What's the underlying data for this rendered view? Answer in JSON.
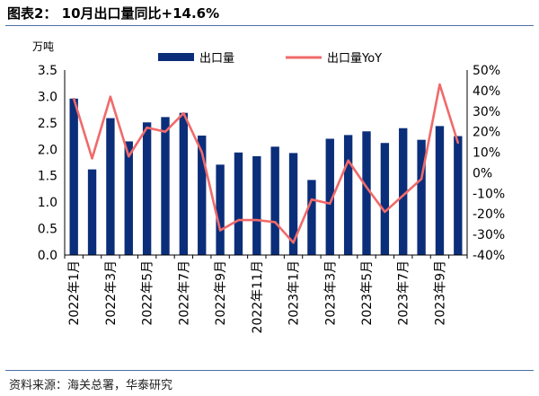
{
  "figure_title": "图表2：  10月出口量同比+14.6%",
  "source": "资料来源：海关总署，华泰研究",
  "colors": {
    "bar": "#0b2e7a",
    "line": "#f06a6a",
    "rule": "#4a6fa5"
  },
  "chart_data": {
    "type": "bar",
    "title": "",
    "unit_left": "万吨",
    "categories": [
      "2022年1月",
      "2022年2月",
      "2022年3月",
      "2022年4月",
      "2022年5月",
      "2022年6月",
      "2022年7月",
      "2022年8月",
      "2022年9月",
      "2022年10月",
      "2022年11月",
      "2022年12月",
      "2023年1月",
      "2023年2月",
      "2023年3月",
      "2023年4月",
      "2023年5月",
      "2023年6月",
      "2023年7月",
      "2023年8月",
      "2023年9月",
      "2023年10月"
    ],
    "x_tick_labels": [
      "2022年1月",
      "",
      "2022年3月",
      "",
      "2022年5月",
      "",
      "2022年7月",
      "",
      "2022年9月",
      "",
      "2022年11月",
      "",
      "2023年1月",
      "",
      "2023年3月",
      "",
      "2023年5月",
      "",
      "2023年7月",
      "",
      "2023年9月",
      ""
    ],
    "series": [
      {
        "name": "出口量",
        "type": "bar",
        "axis": "left",
        "values": [
          2.96,
          1.62,
          2.59,
          2.15,
          2.51,
          2.61,
          2.69,
          2.26,
          1.71,
          1.94,
          1.87,
          2.05,
          1.93,
          1.42,
          2.2,
          2.27,
          2.34,
          2.12,
          2.4,
          2.18,
          2.44,
          2.25
        ]
      },
      {
        "name": "出口量YoY",
        "type": "line",
        "axis": "right",
        "values": [
          0.36,
          0.07,
          0.37,
          0.08,
          0.22,
          0.2,
          0.29,
          0.1,
          -0.28,
          -0.23,
          -0.23,
          -0.24,
          -0.34,
          -0.13,
          -0.15,
          0.06,
          -0.07,
          -0.19,
          -0.11,
          -0.03,
          0.43,
          0.146
        ]
      }
    ],
    "y_left": {
      "min": 0,
      "max": 3.5,
      "ticks": [
        "0.0",
        "0.5",
        "1.0",
        "1.5",
        "2.0",
        "2.5",
        "3.0",
        "3.5"
      ]
    },
    "y_right": {
      "min": -0.4,
      "max": 0.5,
      "ticks": [
        "-40%",
        "-30%",
        "-20%",
        "-10%",
        "0%",
        "10%",
        "20%",
        "30%",
        "40%",
        "50%"
      ]
    },
    "legend": {
      "placement": "top",
      "items": [
        "出口量",
        "出口量YoY"
      ]
    },
    "grid": false
  }
}
